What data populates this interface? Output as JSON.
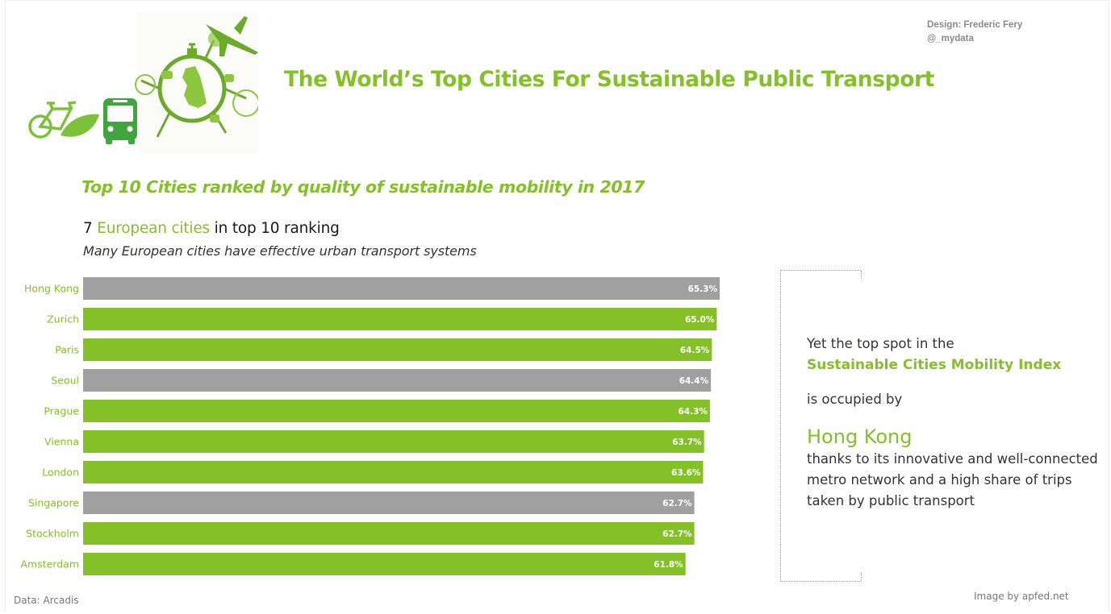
{
  "credit": {
    "designer": "Design: Frederic Fery",
    "handle": "@_mydata"
  },
  "title": "The World’s Top Cities For Sustainable Public Transport",
  "subtitle": "Top 10 Cities ranked by quality of sustainable mobility in 2017",
  "headline": {
    "prefix": "7 ",
    "highlight": "European cities",
    "suffix": " in top 10 ranking"
  },
  "tagline": "Many European cities have effective urban transport systems",
  "hero_image": {
    "icons": [
      "bicycle-recycle-icon",
      "leaf-icon",
      "bus-icon",
      "green-globe-illustration",
      "airplane-icon"
    ]
  },
  "colors": {
    "accent": "#84c027",
    "european": "#84c027",
    "non_european": "#a0a0a0"
  },
  "chart_data": {
    "type": "bar",
    "orientation": "horizontal",
    "title": "Top 10 Cities ranked by quality of sustainable mobility in 2017",
    "xlabel": "",
    "ylabel": "",
    "xlim": [
      0,
      65.3
    ],
    "grid": false,
    "categories": [
      "Hong Kong",
      "Zurich",
      "Paris",
      "Seoul",
      "Prague",
      "Vienna",
      "London",
      "Singapore",
      "Stockholm",
      "Amsterdam"
    ],
    "values": [
      65.3,
      65.0,
      64.5,
      64.4,
      64.3,
      63.7,
      63.6,
      62.7,
      62.7,
      61.8
    ],
    "labels": [
      "65.3%",
      "65.0%",
      "64.5%",
      "64.4%",
      "64.3%",
      "63.7%",
      "63.6%",
      "62.7%",
      "62.7%",
      "61.8%"
    ],
    "european": [
      false,
      true,
      true,
      false,
      true,
      true,
      true,
      false,
      true,
      true
    ],
    "unit": "%"
  },
  "callout": {
    "line1": "Yet the top spot in the",
    "index_name": "Sustainable Cities Mobility Index",
    "line3": "is occupied by",
    "city": "Hong Kong",
    "description": "thanks to its innovative and well-connected metro network and a high share of trips taken by public transport"
  },
  "footer": {
    "source": "Data: Arcadis",
    "image_credit": "Image by apfed.net"
  }
}
